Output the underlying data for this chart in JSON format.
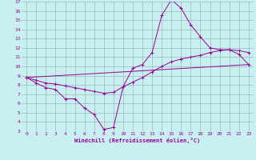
{
  "xlabel": "Windchill (Refroidissement éolien,°C)",
  "bg_color": "#c8f0f0",
  "grid_color": "#9ab8b8",
  "line_color": "#990099",
  "xlim": [
    -0.5,
    23.5
  ],
  "ylim": [
    3,
    17
  ],
  "xticks": [
    0,
    1,
    2,
    3,
    4,
    5,
    6,
    7,
    8,
    9,
    10,
    11,
    12,
    13,
    14,
    15,
    16,
    17,
    18,
    19,
    20,
    21,
    22,
    23
  ],
  "yticks": [
    3,
    4,
    5,
    6,
    7,
    8,
    9,
    10,
    11,
    12,
    13,
    14,
    15,
    16,
    17
  ],
  "line1_x": [
    0,
    1,
    2,
    3,
    4,
    5,
    6,
    7,
    8,
    9,
    10,
    11,
    12,
    13,
    14,
    15,
    16,
    17,
    18,
    19,
    20,
    21,
    22,
    23
  ],
  "line1_y": [
    8.8,
    8.2,
    7.7,
    7.5,
    6.5,
    6.5,
    5.5,
    4.8,
    3.2,
    3.4,
    7.8,
    9.8,
    10.2,
    11.5,
    15.5,
    17.2,
    16.3,
    14.5,
    13.2,
    12.0,
    11.8,
    11.8,
    11.3,
    10.2
  ],
  "line2_x": [
    0,
    1,
    2,
    3,
    4,
    5,
    6,
    7,
    8,
    9,
    10,
    11,
    12,
    13,
    14,
    15,
    16,
    17,
    18,
    19,
    20,
    21,
    22,
    23
  ],
  "line2_y": [
    8.8,
    8.5,
    8.2,
    8.1,
    7.9,
    7.7,
    7.5,
    7.3,
    7.1,
    7.2,
    7.8,
    8.3,
    8.8,
    9.4,
    10.0,
    10.5,
    10.8,
    11.0,
    11.2,
    11.5,
    11.7,
    11.8,
    11.7,
    11.5
  ],
  "line3_x": [
    0,
    23
  ],
  "line3_y": [
    8.8,
    10.2
  ]
}
